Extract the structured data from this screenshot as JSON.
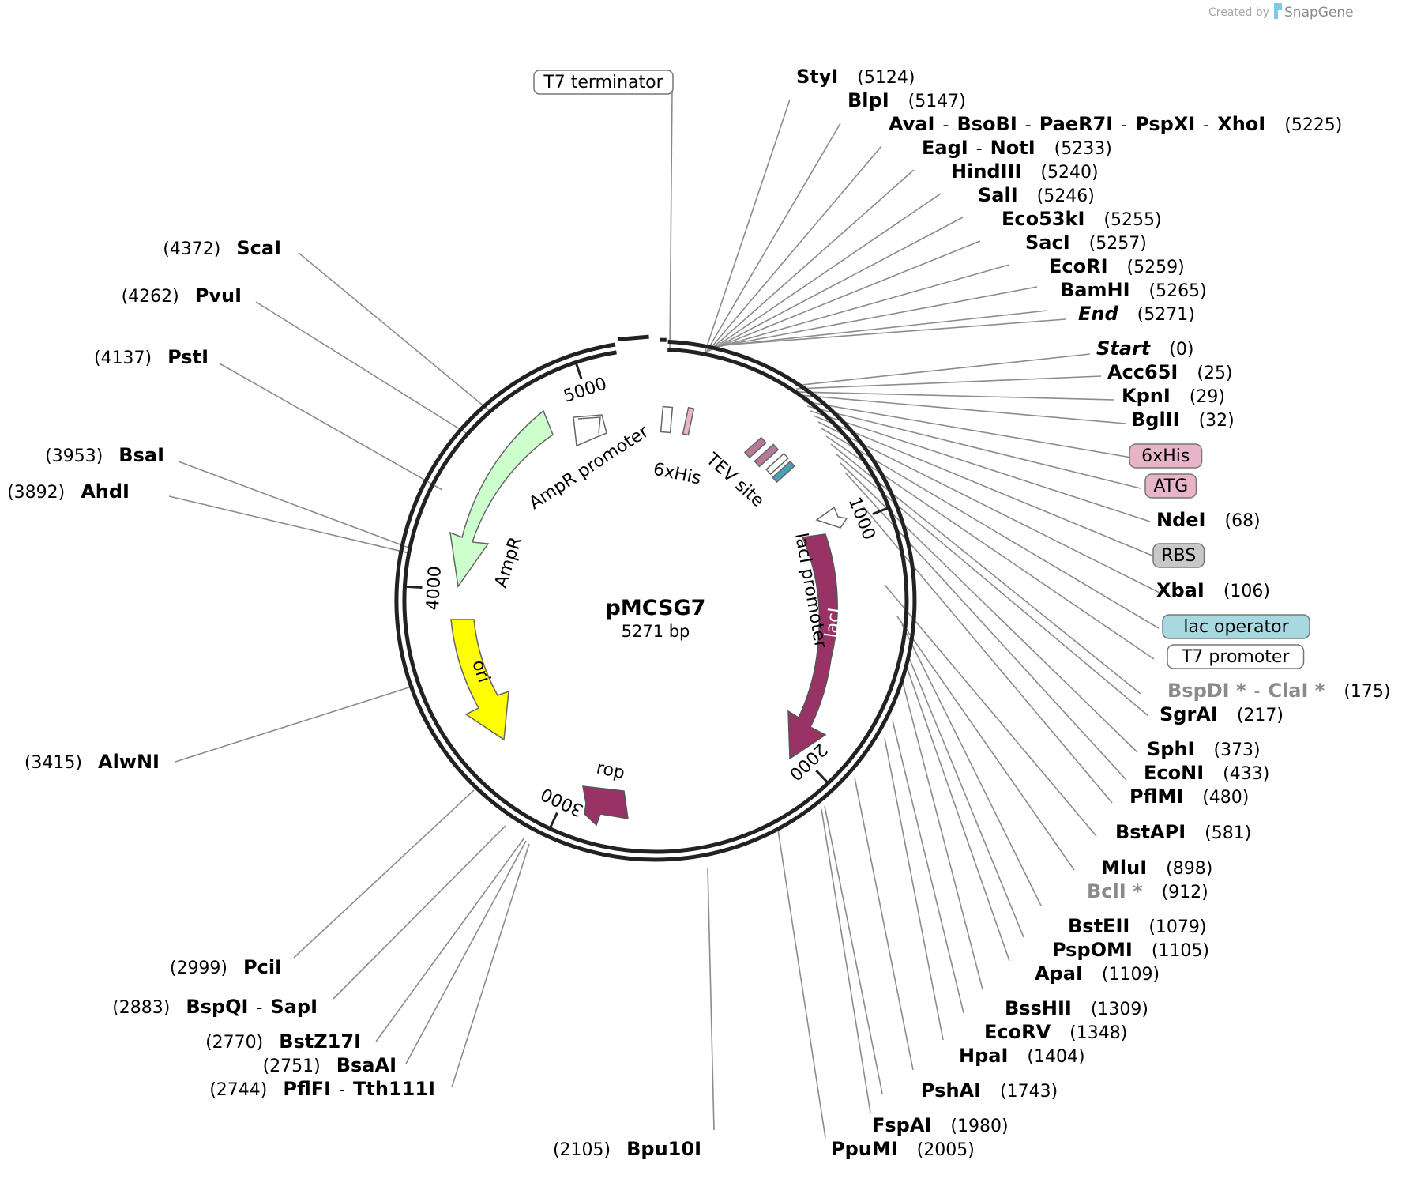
{
  "plasmid": {
    "name": "pMCSG7",
    "length_label": "5271 bp",
    "length": 5271
  },
  "credit": {
    "prefix": "Created by",
    "brand": "SnapGene"
  },
  "ticks": [
    "1000",
    "2000",
    "3000",
    "4000",
    "5000"
  ],
  "features": {
    "ampr": "AmpR",
    "ampr_promoter": "AmpR promoter",
    "ori": "ori",
    "rop": "rop",
    "laci": "lacI",
    "laci_promoter": "lacI promoter",
    "his_inner": "6xHis",
    "tev_inner": "TEV site",
    "t7_terminator": "T7 terminator"
  },
  "right_labels": [
    {
      "names": [
        "StyI"
      ],
      "pos": "(5124)"
    },
    {
      "names": [
        "BlpI"
      ],
      "pos": "(5147)"
    },
    {
      "names": [
        "AvaI",
        "BsoBI",
        "PaeR7I",
        "PspXI",
        "XhoI"
      ],
      "pos": "(5225)"
    },
    {
      "names": [
        "EagI",
        "NotI"
      ],
      "pos": "(5233)"
    },
    {
      "names": [
        "HindIII"
      ],
      "pos": "(5240)"
    },
    {
      "names": [
        "SalI"
      ],
      "pos": "(5246)"
    },
    {
      "names": [
        "Eco53kI"
      ],
      "pos": "(5255)"
    },
    {
      "names": [
        "SacI"
      ],
      "pos": "(5257)"
    },
    {
      "names": [
        "EcoRI"
      ],
      "pos": "(5259)"
    },
    {
      "names": [
        "BamHI"
      ],
      "pos": "(5265)"
    },
    {
      "names": [
        "End"
      ],
      "pos": "(5271)"
    },
    {
      "names": [
        "Start"
      ],
      "pos": "(0)"
    },
    {
      "names": [
        "Acc65I"
      ],
      "pos": "(25)"
    },
    {
      "names": [
        "KpnI"
      ],
      "pos": "(29)"
    },
    {
      "names": [
        "BglII"
      ],
      "pos": "(32)"
    },
    {
      "box": "6xHis",
      "color": "#e8b4c8"
    },
    {
      "box": "ATG",
      "color": "#e8b4c8"
    },
    {
      "names": [
        "NdeI"
      ],
      "pos": "(68)"
    },
    {
      "box": "RBS",
      "color": "#c8c8c8"
    },
    {
      "names": [
        "XbaI"
      ],
      "pos": "(106)"
    },
    {
      "box": "lac operator",
      "color": "#a8d8e0"
    },
    {
      "box": "T7 promoter",
      "color": "#ffffff"
    },
    {
      "names": [
        "BspDI *",
        "ClaI *"
      ],
      "pos": "(175)"
    },
    {
      "names": [
        "SgrAI"
      ],
      "pos": "(217)"
    },
    {
      "names": [
        "SphI"
      ],
      "pos": "(373)"
    },
    {
      "names": [
        "EcoNI"
      ],
      "pos": "(433)"
    },
    {
      "names": [
        "PflMI"
      ],
      "pos": "(480)"
    },
    {
      "names": [
        "BstAPI"
      ],
      "pos": "(581)"
    },
    {
      "names": [
        "MluI"
      ],
      "pos": "(898)"
    },
    {
      "names": [
        "BclI *"
      ],
      "pos": "(912)"
    },
    {
      "names": [
        "BstEII"
      ],
      "pos": "(1079)"
    },
    {
      "names": [
        "PspOMI"
      ],
      "pos": "(1105)"
    },
    {
      "names": [
        "ApaI"
      ],
      "pos": "(1109)"
    },
    {
      "names": [
        "BssHII"
      ],
      "pos": "(1309)"
    },
    {
      "names": [
        "EcoRV"
      ],
      "pos": "(1348)"
    },
    {
      "names": [
        "HpaI"
      ],
      "pos": "(1404)"
    },
    {
      "names": [
        "PshAI"
      ],
      "pos": "(1743)"
    },
    {
      "names": [
        "FspAI"
      ],
      "pos": "(1980)"
    },
    {
      "names": [
        "PpuMI"
      ],
      "pos": "(2005)"
    }
  ],
  "left_labels": [
    {
      "names": [
        "ScaI"
      ],
      "pos": "(4372)"
    },
    {
      "names": [
        "PvuI"
      ],
      "pos": "(4262)"
    },
    {
      "names": [
        "PstI"
      ],
      "pos": "(4137)"
    },
    {
      "names": [
        "BsaI"
      ],
      "pos": "(3953)"
    },
    {
      "names": [
        "AhdI"
      ],
      "pos": "(3892)"
    },
    {
      "names": [
        "AlwNI"
      ],
      "pos": "(3415)"
    },
    {
      "names": [
        "PciI"
      ],
      "pos": "(2999)"
    },
    {
      "names": [
        "BspQI",
        "SapI"
      ],
      "pos": "(2883)"
    },
    {
      "names": [
        "BstZ17I"
      ],
      "pos": "(2770)"
    },
    {
      "names": [
        "BsaAI"
      ],
      "pos": "(2751)"
    },
    {
      "names": [
        "PflFI",
        "Tth111I"
      ],
      "pos": "(2744)"
    },
    {
      "names": [
        "Bpu10I"
      ],
      "pos": "(2105)"
    }
  ],
  "colors": {
    "ampr": "#ccffcc",
    "ori": "#ffff00",
    "laci": "#993366",
    "rop": "#993366",
    "his": "#e8b4c8",
    "tev": "#b87898",
    "lacop": "#4aa0b8",
    "snapgene_blue": "#7ec8e8"
  }
}
